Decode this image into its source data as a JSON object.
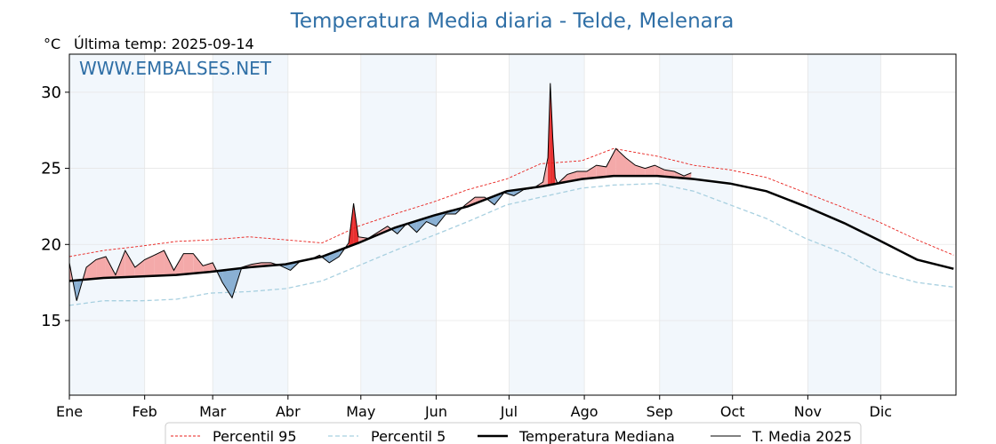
{
  "chart_data": {
    "type": "line",
    "title": "Temperatura Media diaria - Telde, Melenara",
    "unit_label": "°C",
    "last_temp_label": "Última temp: 2025-09-14",
    "watermark": "WWW.EMBALSES.NET",
    "x_tick_labels": [
      "Ene",
      "Feb",
      "Mar",
      "Abr",
      "May",
      "Jun",
      "Jul",
      "Ago",
      "Sep",
      "Oct",
      "Nov",
      "Dic"
    ],
    "y_ticks": [
      15,
      20,
      25,
      30
    ],
    "ylim": [
      10.1,
      32.5
    ],
    "xlim_days": [
      1,
      366
    ],
    "grid": true,
    "legend_placement": "bottom-center",
    "colors": {
      "p95": "#e8201c",
      "p5": "#a8d0e0",
      "median": "#000000",
      "current": "#000000",
      "above": "#f4a9a9",
      "above_strong": "#e83030",
      "below": "#8ab0d3",
      "below_strong": "#1f5a95",
      "month_band": "#f2f7fc"
    },
    "series": [
      {
        "key": "p95",
        "name": "Percentil 95",
        "x": [
          1,
          15,
          31,
          45,
          59,
          75,
          90,
          105,
          120,
          135,
          151,
          165,
          181,
          195,
          212,
          225,
          243,
          258,
          273,
          288,
          304,
          320,
          334,
          350,
          365
        ],
        "y": [
          19.2,
          19.6,
          19.9,
          20.2,
          20.3,
          20.5,
          20.3,
          20.1,
          21.2,
          22.0,
          22.8,
          23.6,
          24.3,
          25.3,
          25.5,
          26.3,
          25.8,
          25.2,
          24.9,
          24.4,
          23.4,
          22.4,
          21.5,
          20.3,
          19.3
        ]
      },
      {
        "key": "p5",
        "name": "Percentil 5",
        "x": [
          1,
          15,
          31,
          45,
          59,
          75,
          90,
          105,
          120,
          135,
          151,
          165,
          181,
          195,
          212,
          225,
          243,
          258,
          273,
          288,
          304,
          320,
          334,
          350,
          365
        ],
        "y": [
          16.0,
          16.3,
          16.3,
          16.4,
          16.8,
          16.9,
          17.1,
          17.6,
          18.6,
          19.6,
          20.6,
          21.5,
          22.6,
          23.1,
          23.7,
          23.9,
          24.0,
          23.5,
          22.6,
          21.7,
          20.4,
          19.4,
          18.2,
          17.5,
          17.2
        ]
      },
      {
        "key": "median",
        "name": "Temperatura Mediana",
        "x": [
          1,
          15,
          31,
          45,
          59,
          75,
          90,
          105,
          120,
          135,
          151,
          165,
          181,
          195,
          212,
          225,
          243,
          258,
          273,
          288,
          304,
          320,
          334,
          350,
          365
        ],
        "y": [
          17.6,
          17.8,
          17.9,
          18.0,
          18.2,
          18.5,
          18.7,
          19.2,
          20.1,
          21.1,
          21.9,
          22.5,
          23.5,
          23.8,
          24.3,
          24.5,
          24.5,
          24.3,
          24.0,
          23.5,
          22.5,
          21.4,
          20.3,
          19.0,
          18.4
        ]
      },
      {
        "key": "current",
        "name": "T. Media 2025",
        "x": [
          1,
          4,
          8,
          12,
          16,
          20,
          24,
          28,
          32,
          36,
          40,
          44,
          48,
          52,
          56,
          60,
          64,
          68,
          72,
          76,
          80,
          84,
          88,
          92,
          96,
          100,
          104,
          108,
          112,
          116,
          118,
          120,
          124,
          128,
          132,
          136,
          140,
          144,
          148,
          152,
          156,
          160,
          164,
          168,
          172,
          176,
          180,
          184,
          188,
          192,
          196,
          198,
          199,
          200,
          201,
          202,
          206,
          210,
          214,
          218,
          222,
          226,
          230,
          234,
          238,
          242,
          246,
          250,
          254,
          257
        ],
        "y": [
          18.8,
          16.3,
          18.5,
          19.0,
          19.2,
          18.0,
          19.6,
          18.5,
          19.0,
          19.3,
          19.6,
          18.3,
          19.4,
          19.4,
          18.6,
          18.8,
          17.5,
          16.5,
          18.5,
          18.7,
          18.8,
          18.8,
          18.6,
          18.3,
          18.9,
          19.0,
          19.3,
          18.8,
          19.2,
          20.1,
          22.7,
          20.5,
          20.4,
          20.8,
          21.2,
          20.7,
          21.4,
          20.8,
          21.5,
          21.2,
          22.0,
          22.0,
          22.6,
          23.1,
          23.1,
          22.6,
          23.4,
          23.2,
          23.6,
          23.7,
          24.1,
          25.7,
          30.6,
          27.0,
          24.4,
          24.0,
          24.6,
          24.8,
          24.8,
          25.2,
          25.1,
          26.3,
          25.7,
          25.2,
          25.0,
          25.2,
          24.9,
          24.8,
          24.5,
          24.7
        ]
      }
    ]
  }
}
